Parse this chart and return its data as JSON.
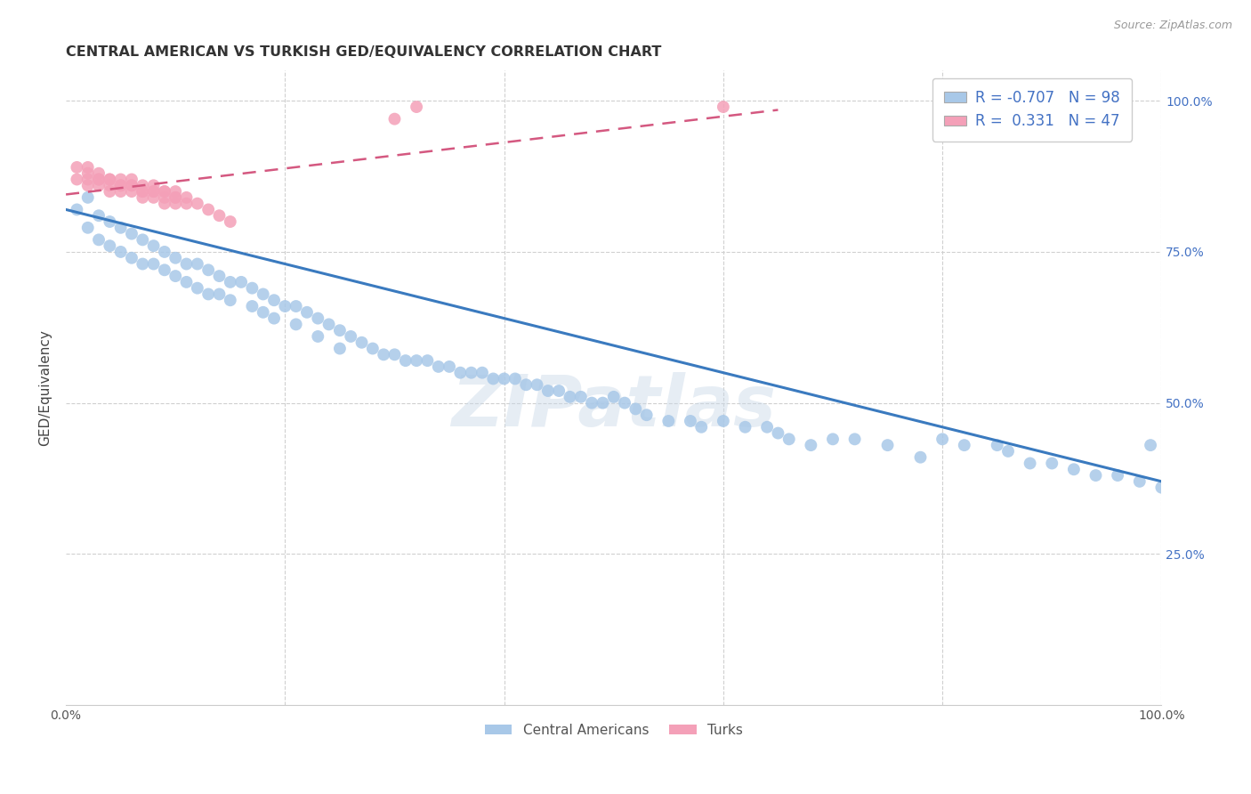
{
  "title": "CENTRAL AMERICAN VS TURKISH GED/EQUIVALENCY CORRELATION CHART",
  "source": "Source: ZipAtlas.com",
  "ylabel": "GED/Equivalency",
  "blue_R": -0.707,
  "blue_N": 98,
  "pink_R": 0.331,
  "pink_N": 47,
  "blue_color": "#a8c8e8",
  "pink_color": "#f4a0b8",
  "blue_line_color": "#3a7abf",
  "pink_line_color": "#d45880",
  "legend_label_blue": "Central Americans",
  "legend_label_pink": "Turks",
  "watermark": "ZIPatlas",
  "xlim": [
    0.0,
    1.0
  ],
  "ylim": [
    0.0,
    1.05
  ],
  "blue_line_x0": 0.0,
  "blue_line_y0": 0.82,
  "blue_line_x1": 1.0,
  "blue_line_y1": 0.37,
  "pink_line_x0": 0.0,
  "pink_line_y0": 0.845,
  "pink_line_x1": 0.65,
  "pink_line_y1": 0.985,
  "blue_points_x": [
    0.01,
    0.02,
    0.02,
    0.03,
    0.03,
    0.04,
    0.04,
    0.05,
    0.05,
    0.06,
    0.06,
    0.07,
    0.07,
    0.08,
    0.08,
    0.09,
    0.09,
    0.1,
    0.1,
    0.11,
    0.11,
    0.12,
    0.12,
    0.13,
    0.13,
    0.14,
    0.14,
    0.15,
    0.15,
    0.16,
    0.17,
    0.17,
    0.18,
    0.18,
    0.19,
    0.19,
    0.2,
    0.21,
    0.21,
    0.22,
    0.23,
    0.23,
    0.24,
    0.25,
    0.25,
    0.26,
    0.27,
    0.28,
    0.29,
    0.3,
    0.31,
    0.32,
    0.33,
    0.34,
    0.35,
    0.36,
    0.37,
    0.38,
    0.39,
    0.4,
    0.41,
    0.42,
    0.43,
    0.44,
    0.45,
    0.46,
    0.47,
    0.48,
    0.49,
    0.5,
    0.51,
    0.52,
    0.53,
    0.55,
    0.57,
    0.58,
    0.6,
    0.62,
    0.64,
    0.65,
    0.66,
    0.68,
    0.7,
    0.72,
    0.75,
    0.78,
    0.8,
    0.82,
    0.85,
    0.86,
    0.88,
    0.9,
    0.92,
    0.94,
    0.96,
    0.98,
    0.99,
    1.0
  ],
  "blue_points_y": [
    0.82,
    0.84,
    0.79,
    0.81,
    0.77,
    0.8,
    0.76,
    0.79,
    0.75,
    0.78,
    0.74,
    0.77,
    0.73,
    0.76,
    0.73,
    0.75,
    0.72,
    0.74,
    0.71,
    0.73,
    0.7,
    0.73,
    0.69,
    0.72,
    0.68,
    0.71,
    0.68,
    0.7,
    0.67,
    0.7,
    0.69,
    0.66,
    0.68,
    0.65,
    0.67,
    0.64,
    0.66,
    0.66,
    0.63,
    0.65,
    0.64,
    0.61,
    0.63,
    0.62,
    0.59,
    0.61,
    0.6,
    0.59,
    0.58,
    0.58,
    0.57,
    0.57,
    0.57,
    0.56,
    0.56,
    0.55,
    0.55,
    0.55,
    0.54,
    0.54,
    0.54,
    0.53,
    0.53,
    0.52,
    0.52,
    0.51,
    0.51,
    0.5,
    0.5,
    0.51,
    0.5,
    0.49,
    0.48,
    0.47,
    0.47,
    0.46,
    0.47,
    0.46,
    0.46,
    0.45,
    0.44,
    0.43,
    0.44,
    0.44,
    0.43,
    0.41,
    0.44,
    0.43,
    0.43,
    0.42,
    0.4,
    0.4,
    0.39,
    0.38,
    0.38,
    0.37,
    0.43,
    0.36
  ],
  "pink_points_x": [
    0.01,
    0.01,
    0.02,
    0.02,
    0.02,
    0.02,
    0.03,
    0.03,
    0.03,
    0.03,
    0.04,
    0.04,
    0.04,
    0.04,
    0.05,
    0.05,
    0.05,
    0.05,
    0.06,
    0.06,
    0.06,
    0.06,
    0.07,
    0.07,
    0.07,
    0.07,
    0.08,
    0.08,
    0.08,
    0.08,
    0.09,
    0.09,
    0.09,
    0.09,
    0.1,
    0.1,
    0.1,
    0.1,
    0.11,
    0.11,
    0.12,
    0.13,
    0.14,
    0.15,
    0.3,
    0.32,
    0.6
  ],
  "pink_points_y": [
    0.87,
    0.89,
    0.87,
    0.89,
    0.86,
    0.88,
    0.87,
    0.88,
    0.86,
    0.87,
    0.86,
    0.87,
    0.85,
    0.87,
    0.86,
    0.87,
    0.85,
    0.86,
    0.86,
    0.87,
    0.85,
    0.86,
    0.85,
    0.86,
    0.84,
    0.85,
    0.85,
    0.86,
    0.84,
    0.85,
    0.85,
    0.83,
    0.84,
    0.85,
    0.84,
    0.85,
    0.83,
    0.84,
    0.83,
    0.84,
    0.83,
    0.82,
    0.81,
    0.8,
    0.97,
    0.99,
    0.99
  ]
}
